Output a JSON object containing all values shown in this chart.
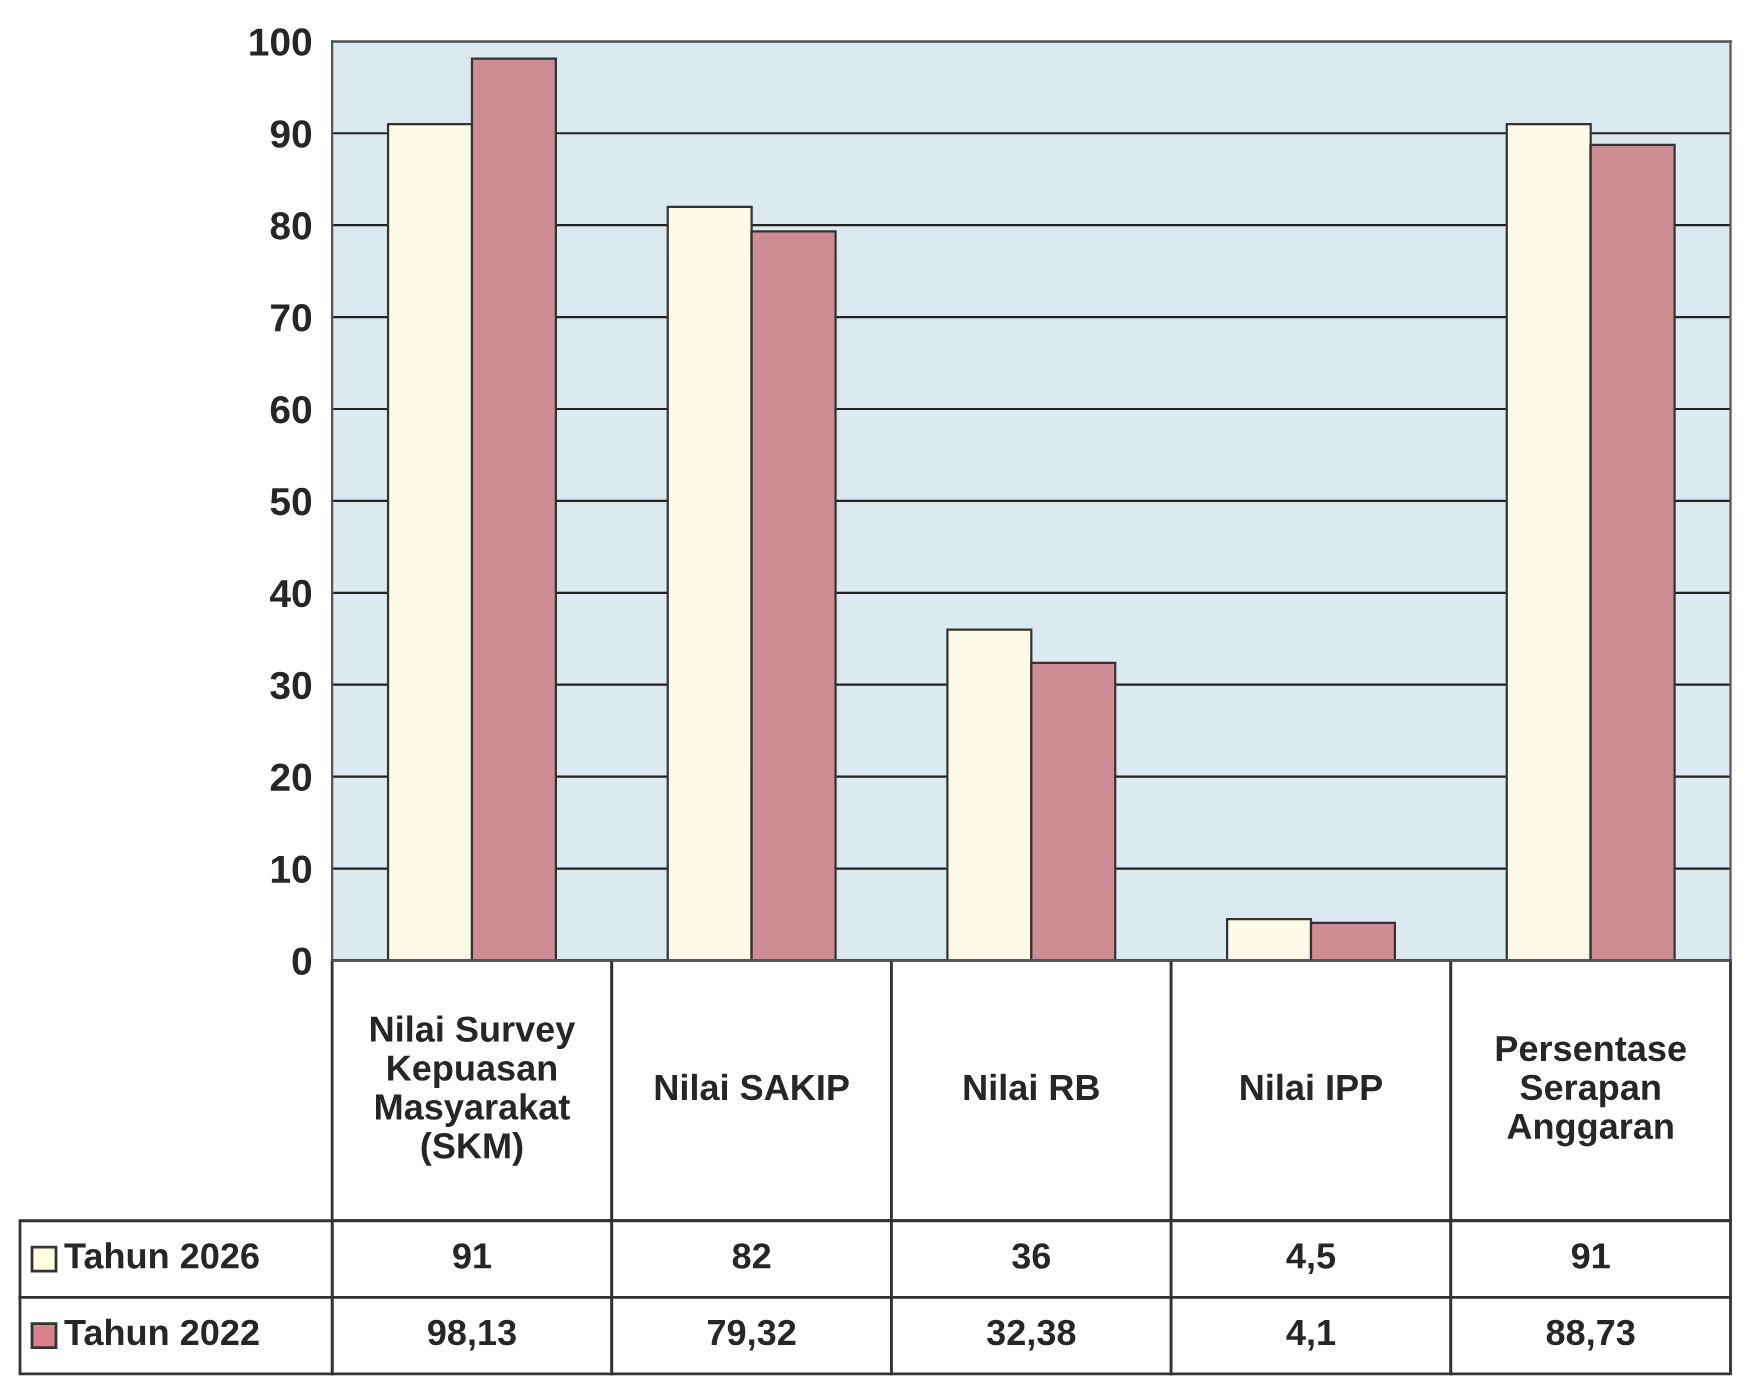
{
  "chart_data": {
    "type": "bar",
    "categories": [
      "Nilai Survey Kepuasan Masyarakat (SKM)",
      "Nilai SAKIP",
      "Nilai RB",
      "Nilai IPP",
      "Persentase Serapan Anggaran"
    ],
    "series": [
      {
        "name": "Tahun 2026",
        "color": "#fffde2",
        "values": [
          91,
          82,
          36,
          4.5,
          91
        ],
        "value_labels": [
          "91",
          "82",
          "36",
          "4,5",
          "91"
        ]
      },
      {
        "name": "Tahun 2022",
        "color": "#d9828c",
        "values": [
          98.13,
          79.32,
          32.38,
          4.1,
          88.73
        ],
        "value_labels": [
          "98,13",
          "79,32",
          "32,38",
          "4,1",
          "88,73"
        ]
      }
    ],
    "ylim": [
      0,
      100
    ],
    "yticks": [
      0,
      10,
      20,
      30,
      40,
      50,
      60,
      70,
      80,
      90,
      100
    ],
    "grid": "y",
    "legend": "bottom left"
  }
}
